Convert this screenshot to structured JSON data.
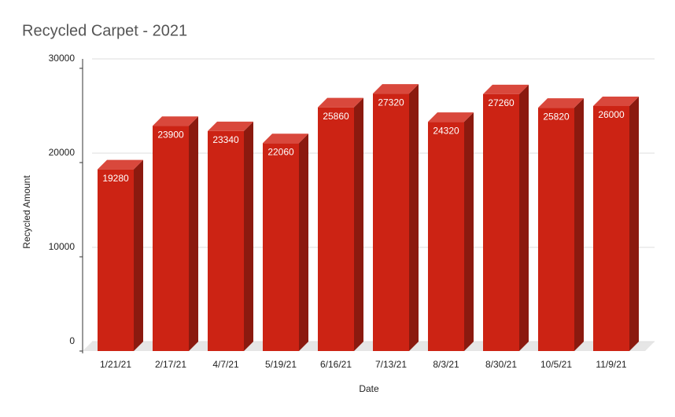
{
  "chart_data": {
    "type": "bar3d",
    "title": "Recycled Carpet - 2021",
    "x_label": "Date",
    "y_label": "Recycled Amount",
    "categories": [
      "1/21/21",
      "2/17/21",
      "4/7/21",
      "5/19/21",
      "6/16/21",
      "7/13/21",
      "8/3/21",
      "8/30/21",
      "10/5/21",
      "11/9/21"
    ],
    "values": [
      19280,
      23900,
      23340,
      22060,
      25860,
      27320,
      24320,
      27260,
      25820,
      26000
    ],
    "color": "#cc2314",
    "ylim": [
      0,
      30000
    ],
    "yticks": [
      0,
      10000,
      20000,
      30000
    ],
    "grid": true
  }
}
